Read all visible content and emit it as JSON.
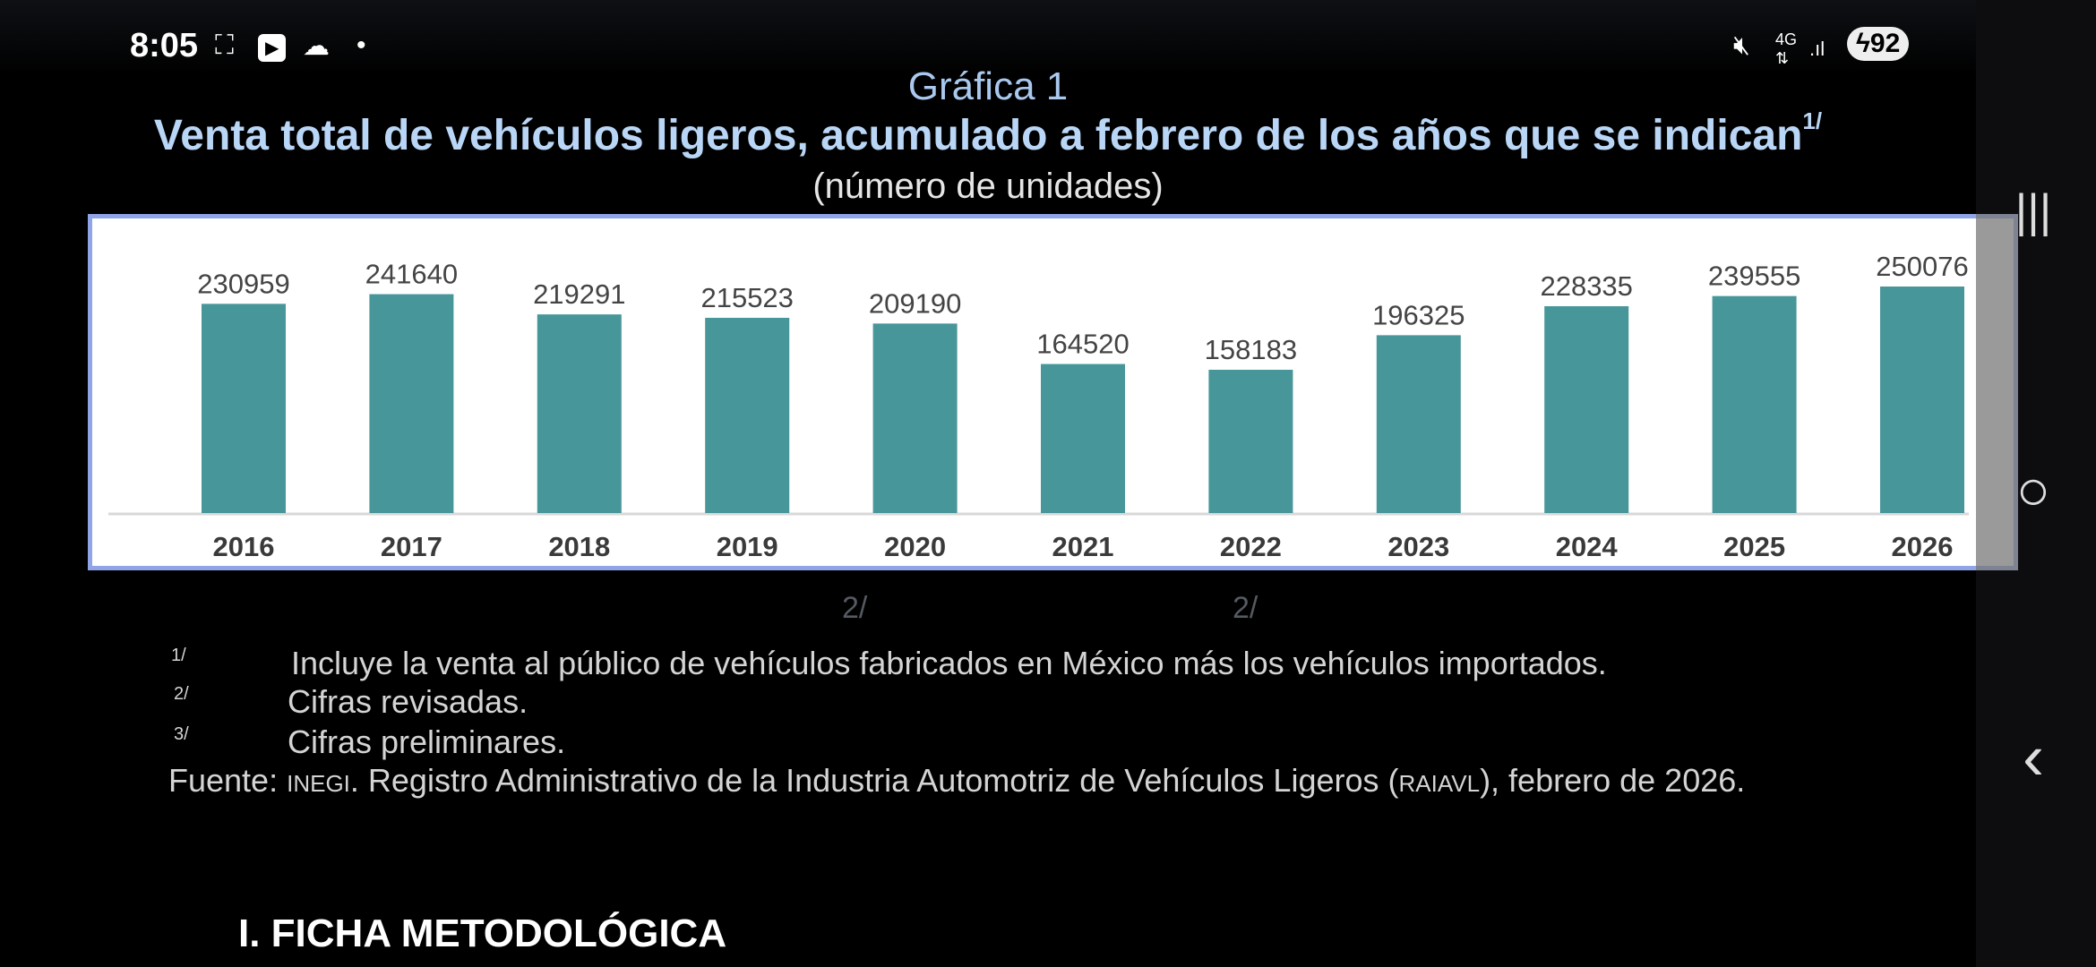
{
  "status_bar": {
    "time": "8:05",
    "battery": "92",
    "icons": [
      "screenshot-icon",
      "youtube-icon",
      "cloud-icon",
      "dot-icon",
      "mute-icon",
      "4g-icon",
      "signal-icon",
      "battery-charging-icon"
    ]
  },
  "nav_bar": {
    "recents": "|||",
    "home": "○",
    "back": "‹"
  },
  "header": {
    "label": "Gráfica 1",
    "title": "Venta total de vehículos ligeros, acumulado a febrero de los años que se indican",
    "title_sup": "1/",
    "subtitle": "(número de unidades)"
  },
  "chart_data": {
    "type": "bar",
    "title": "Venta total de vehículos ligeros, acumulado a febrero de los años que se indican",
    "xlabel": "",
    "ylabel": "número de unidades",
    "categories": [
      "2016",
      "2017",
      "2018",
      "2019",
      "2020",
      "2021",
      "2022",
      "2023",
      "2024",
      "2025",
      "2026"
    ],
    "values": [
      230959,
      241640,
      219291,
      215523,
      209190,
      164520,
      158183,
      196325,
      228335,
      239555,
      250076
    ],
    "ylim": [
      0,
      250076
    ],
    "grid": false,
    "bar_color": "#47969a"
  },
  "below_chart_marks": [
    "2/",
    "2/"
  ],
  "footnotes": [
    {
      "mark": "1/",
      "text": "Incluye la venta al público de vehículos fabricados en México más los vehículos importados."
    },
    {
      "mark": "2/",
      "text": "Cifras revisadas."
    },
    {
      "mark": "3/",
      "text": "Cifras preliminares."
    }
  ],
  "source": {
    "prefix": "Fuente:",
    "org": "INEGI",
    "mid": ". Registro Administrativo de la Industria Automotriz de Vehículos Ligeros (",
    "abbr": "RAIAVL",
    "suffix": "), febrero de 2026."
  },
  "section_heading": "I. FICHA METODOLÓGICA"
}
